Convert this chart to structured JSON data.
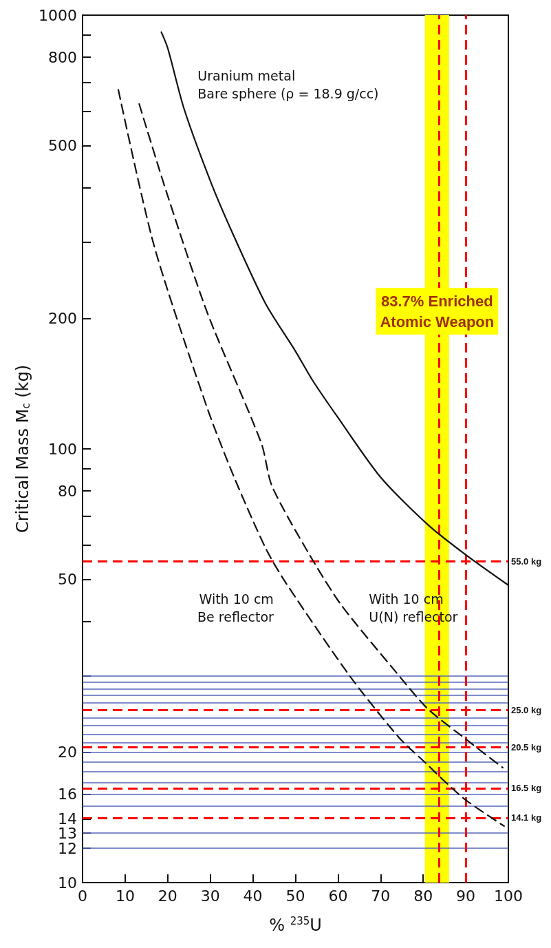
{
  "chart_data": {
    "type": "line",
    "xlabel": "% $^{235}$U",
    "ylabel": "Critical Mass M$_{c}$ (kg)",
    "series": [
      {
        "color": "#111111",
        "line_style": "solid",
        "x": [
          18.5,
          20,
          23.8,
          30,
          35,
          43,
          50,
          54,
          60,
          70,
          81,
          90,
          100
        ],
        "values": [
          914,
          840,
          610,
          415,
          318,
          216,
          168,
          144,
          118,
          86,
          67,
          57,
          48.5
        ]
      },
      {
        "color": "#111111",
        "line_style": "dashed",
        "x": [
          8.4,
          16.8,
          29.3,
          35.6,
          43,
          47.8,
          62.7,
          74.3,
          81,
          84,
          90,
          99
        ],
        "values": [
          673,
          294,
          124,
          86,
          59,
          49,
          30,
          21.6,
          18.7,
          17.5,
          15.5,
          13.5
        ]
      },
      {
        "color": "#111111",
        "line_style": "dashed",
        "x": [
          13.3,
          19.6,
          29.3,
          42,
          44.5,
          53.3,
          60.8,
          73.7,
          81,
          90.6,
          98.7
        ],
        "values": [
          624,
          394,
          206,
          103,
          82,
          57,
          43.6,
          30.5,
          25.2,
          21.2,
          18.4
        ]
      }
    ],
    "xlim": [
      0,
      100
    ],
    "xticks": [
      0,
      10,
      20,
      30,
      40,
      50,
      60,
      70,
      80,
      90,
      100
    ],
    "ylim": [
      10,
      1000
    ],
    "log": true,
    "yticks": [
      10,
      12,
      13,
      14,
      16,
      20,
      {
        "value": 30,
        "label": null
      },
      {
        "value": 40,
        "label": null
      },
      50,
      {
        "value": 60,
        "label": null
      },
      {
        "value": 70,
        "label": null
      },
      80,
      {
        "value": 90,
        "label": null
      },
      100,
      200,
      {
        "value": 300,
        "label": null
      },
      {
        "value": 400,
        "label": null
      },
      500,
      {
        "value": 600,
        "label": null
      },
      {
        "value": 700,
        "label": null
      },
      800,
      {
        "value": 900,
        "label": null
      },
      1000
    ],
    "grid": false,
    "marker": "none",
    "legend": false,
    "annotations": [
      {
        "text": "Uranium metal\nBare sphere (ρ = 18.9 g/cc)",
        "x": 23.8,
        "y": 610
      },
      {
        "text": "With 10 cm\nBe reflector",
        "x": 47.8,
        "y": 49
      },
      {
        "text": "With 10 cm\nU(N) reflector",
        "x": 60.8,
        "y": 43.6
      }
    ],
    "bands": [
      {
        "axis": "x",
        "from": 80.4,
        "to": 86.1,
        "label": "83.7% Enriched\nAtomic Weapon",
        "color": "#ffff00"
      }
    ],
    "ref_lines": [
      {
        "axis": "y",
        "value": 12,
        "label": null,
        "color": "#5566bb",
        "line_style": "solid"
      },
      {
        "axis": "y",
        "value": 13,
        "label": null,
        "color": "#5566bb",
        "line_style": "solid"
      },
      {
        "axis": "y",
        "value": 15,
        "label": null,
        "color": "#5566bb",
        "line_style": "solid"
      },
      {
        "axis": "y",
        "value": 16,
        "label": null,
        "color": "#5566bb",
        "line_style": "solid"
      },
      {
        "axis": "y",
        "value": 17,
        "label": null,
        "color": "#5566bb",
        "line_style": "solid"
      },
      {
        "axis": "y",
        "value": 18,
        "label": null,
        "color": "#5566bb",
        "line_style": "solid"
      },
      {
        "axis": "y",
        "value": 19,
        "label": null,
        "color": "#5566bb",
        "line_style": "solid"
      },
      {
        "axis": "y",
        "value": 20,
        "label": null,
        "color": "#5566bb",
        "line_style": "solid"
      },
      {
        "axis": "y",
        "value": 21,
        "label": null,
        "color": "#5566bb",
        "line_style": "solid"
      },
      {
        "axis": "y",
        "value": 22,
        "label": null,
        "color": "#5566bb",
        "line_style": "solid"
      },
      {
        "axis": "y",
        "value": 23,
        "label": null,
        "color": "#5566bb",
        "line_style": "solid"
      },
      {
        "axis": "y",
        "value": 24,
        "label": null,
        "color": "#5566bb",
        "line_style": "solid"
      },
      {
        "axis": "y",
        "value": 26,
        "label": null,
        "color": "#5566bb",
        "line_style": "solid"
      },
      {
        "axis": "y",
        "value": 27,
        "label": null,
        "color": "#5566bb",
        "line_style": "solid"
      },
      {
        "axis": "y",
        "value": 28,
        "label": null,
        "color": "#5566bb",
        "line_style": "solid"
      },
      {
        "axis": "y",
        "value": 29,
        "label": null,
        "color": "#5566bb",
        "line_style": "solid"
      },
      {
        "axis": "y",
        "value": 30,
        "label": null,
        "color": "#5566bb",
        "line_style": "solid"
      },
      {
        "axis": "y",
        "value": 55,
        "label": "55.0 kg",
        "color": "#ff0000",
        "line_style": "dashed"
      },
      {
        "axis": "y",
        "value": 25,
        "label": "25.0 kg",
        "color": "#ff0000",
        "line_style": "dashed"
      },
      {
        "axis": "y",
        "value": 20.5,
        "label": "20.5 kg",
        "color": "#ff0000",
        "line_style": "dashed"
      },
      {
        "axis": "y",
        "value": 16.5,
        "label": "16.5 kg",
        "color": "#ff0000",
        "line_style": "dashed"
      },
      {
        "axis": "y",
        "value": 14.1,
        "label": "14.1 kg",
        "color": "#ff0000",
        "line_style": "dashed"
      },
      {
        "axis": "x",
        "value": 83.7,
        "label": null,
        "color": "#ff0000",
        "line_style": "dashed"
      },
      {
        "axis": "x",
        "value": 90,
        "label": null,
        "color": "#ff0000",
        "line_style": "dashed"
      }
    ]
  }
}
